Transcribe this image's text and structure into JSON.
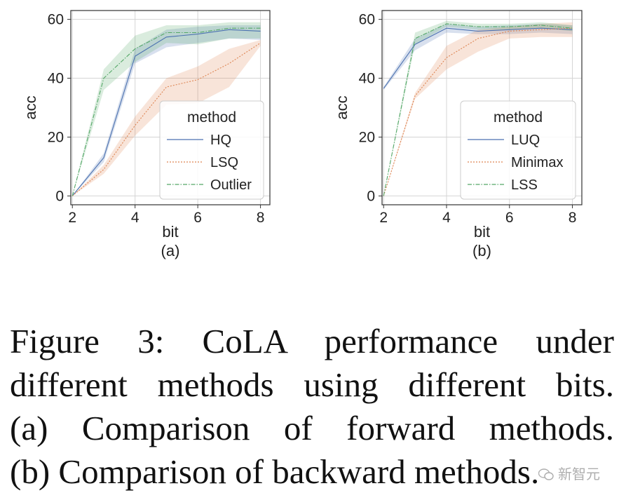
{
  "chart_data": [
    {
      "type": "line",
      "subplot_label": "(a)",
      "xlabel": "bit",
      "ylabel": "acc",
      "xlim": [
        1.95,
        8.3
      ],
      "ylim": [
        -3,
        63
      ],
      "xticks": [
        2,
        4,
        6,
        8
      ],
      "yticks": [
        0,
        20,
        40,
        60
      ],
      "grid": true,
      "legend_title": "method",
      "legend_position": "lower-right",
      "x": [
        2,
        3,
        4,
        5,
        6,
        7,
        8
      ],
      "series": [
        {
          "name": "HQ",
          "color": "#4c72b0",
          "dash": "solid",
          "values": [
            0,
            13,
            47.5,
            54,
            55,
            56.5,
            56
          ],
          "lower": [
            0,
            11.5,
            45,
            50.5,
            52,
            53.5,
            53
          ],
          "upper": [
            0,
            14.5,
            50,
            56.5,
            57.5,
            58,
            58
          ]
        },
        {
          "name": "LSQ",
          "color": "#dd8452",
          "dash": "dotted",
          "values": [
            0,
            9,
            24,
            37,
            39.5,
            45,
            52
          ],
          "lower": [
            0,
            7.5,
            20.5,
            31,
            31.5,
            37,
            51
          ],
          "upper": [
            0,
            10.5,
            27,
            40,
            44,
            50,
            53
          ]
        },
        {
          "name": "Outlier",
          "color": "#55a868",
          "dash": "dashdot",
          "values": [
            0,
            40,
            50,
            55.5,
            55.5,
            57,
            57
          ],
          "lower": [
            0,
            36,
            45.5,
            52,
            51.5,
            53.5,
            53.5
          ],
          "upper": [
            0,
            43,
            54.5,
            58,
            58,
            59,
            59
          ]
        }
      ]
    },
    {
      "type": "line",
      "subplot_label": "(b)",
      "xlabel": "bit",
      "ylabel": "acc",
      "xlim": [
        1.95,
        8.3
      ],
      "ylim": [
        -3,
        63
      ],
      "xticks": [
        2,
        4,
        6,
        8
      ],
      "yticks": [
        0,
        20,
        40,
        60
      ],
      "grid": true,
      "legend_title": "method",
      "legend_position": "lower-right",
      "x": [
        2,
        3,
        4,
        5,
        6,
        7,
        8
      ],
      "series": [
        {
          "name": "LUQ",
          "color": "#4c72b0",
          "dash": "solid",
          "values": [
            36.5,
            51.5,
            57,
            56,
            56.5,
            57,
            56.5
          ],
          "lower": [
            36,
            49.5,
            55.5,
            55,
            55,
            55.5,
            55
          ],
          "upper": [
            37,
            53.5,
            58.5,
            57.5,
            58,
            58.5,
            58
          ]
        },
        {
          "name": "Minimax",
          "color": "#dd8452",
          "dash": "dotted",
          "values": [
            0,
            34,
            47,
            53.5,
            56,
            56.5,
            57
          ],
          "lower": [
            0,
            33,
            43,
            49,
            53.5,
            54,
            54
          ],
          "upper": [
            0,
            35,
            51,
            56.5,
            57.5,
            58.5,
            59
          ]
        },
        {
          "name": "LSS",
          "color": "#55a868",
          "dash": "dashdot",
          "values": [
            0,
            53.5,
            58.5,
            57.5,
            57.5,
            58,
            57
          ],
          "lower": [
            0,
            51.5,
            57.5,
            56.5,
            56.5,
            57,
            56
          ],
          "upper": [
            0,
            55.5,
            59.5,
            58.5,
            58.5,
            59,
            58
          ]
        }
      ]
    }
  ],
  "caption_lines": [
    "Figure 3:  CoLA performance under",
    "different methods using different bits.",
    "(a) Comparison of forward methods.",
    "(b) Comparison of backward methods."
  ],
  "watermark": "新智元"
}
